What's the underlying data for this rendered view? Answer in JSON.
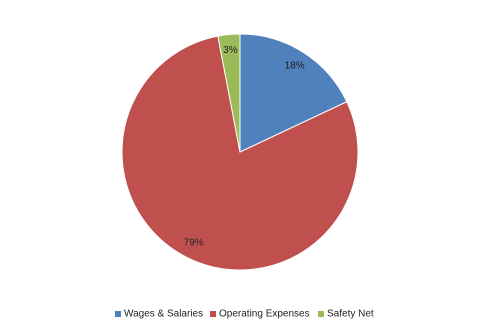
{
  "chart_data": {
    "type": "pie",
    "categories": [
      "Wages & Salaries",
      "Operating Expenses",
      "Safety Net"
    ],
    "values": [
      18,
      79,
      3
    ],
    "value_labels": [
      "18%",
      "79%",
      "3%"
    ],
    "colors": [
      "#4f81bd",
      "#c0504d",
      "#9bbb59"
    ],
    "legend": "bottom"
  }
}
